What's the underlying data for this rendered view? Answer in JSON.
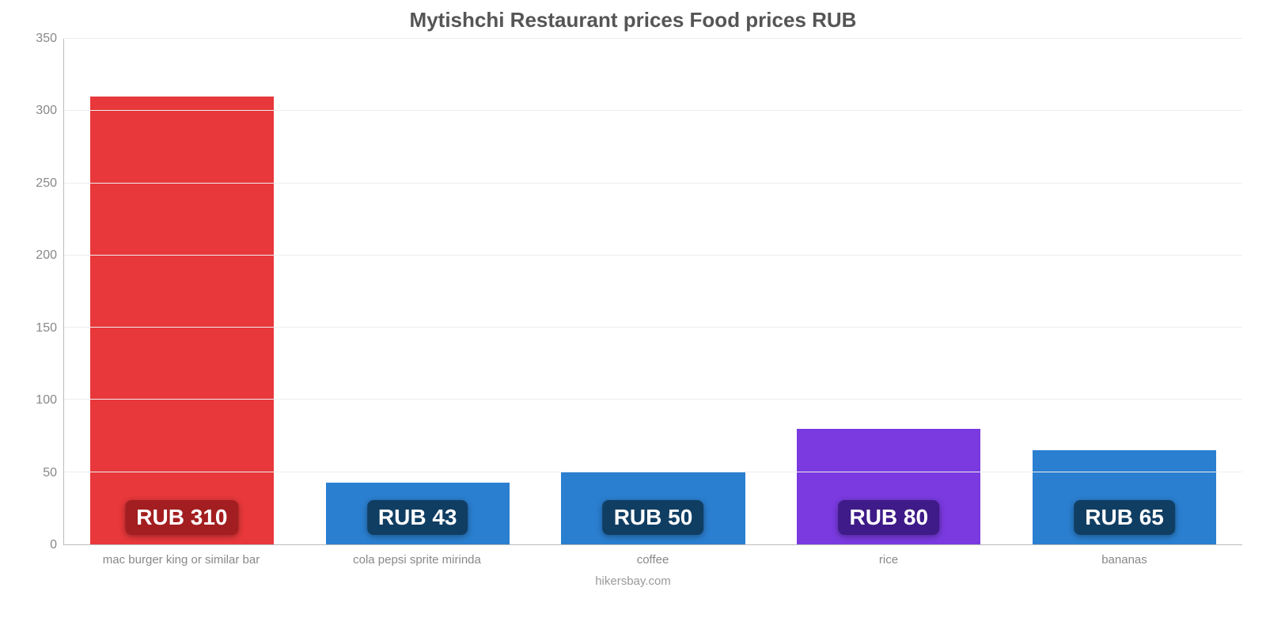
{
  "chart": {
    "type": "bar",
    "title": "Mytishchi Restaurant prices Food prices RUB",
    "title_fontsize": 26,
    "title_color": "#555555",
    "source": "hikersbay.com",
    "source_color": "#999999",
    "background_color": "#ffffff",
    "grid_color": "#eeeeee",
    "axis_color": "#bbbbbb",
    "axis_label_color": "#888888",
    "axis_label_fontsize": 16,
    "x_label_fontsize": 15,
    "badge_fontsize": 28,
    "badge_text_color": "#ffffff",
    "ylim": [
      0,
      350
    ],
    "ytick_step": 50,
    "yticks": [
      0,
      50,
      100,
      150,
      200,
      250,
      300,
      350
    ],
    "bar_width_pct": 78,
    "categories": [
      "mac burger king or similar bar",
      "cola pepsi sprite mirinda",
      "coffee",
      "rice",
      "bananas"
    ],
    "values": [
      310,
      43,
      50,
      80,
      65
    ],
    "value_labels": [
      "RUB 310",
      "RUB 43",
      "RUB 50",
      "RUB 80",
      "RUB 65"
    ],
    "bar_colors": [
      "#e8383b",
      "#2a7fd0",
      "#2a7fd0",
      "#7a3ae0",
      "#2a7fd0"
    ],
    "badge_colors": [
      "#a31e20",
      "#103e63",
      "#103e63",
      "#3e1b88",
      "#103e63"
    ]
  }
}
